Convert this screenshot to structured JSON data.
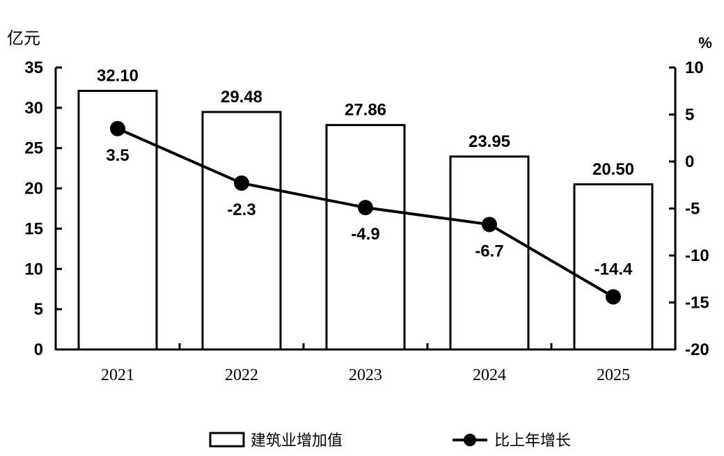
{
  "chart_data": {
    "type": "bar",
    "categories": [
      "2021",
      "2022",
      "2023",
      "2024",
      "2025"
    ],
    "series": [
      {
        "name": "建筑业增加值",
        "type": "bar",
        "axis": "left",
        "values": [
          32.1,
          29.48,
          27.86,
          23.95,
          20.5
        ],
        "labels": [
          "32.10",
          "29.48",
          "27.86",
          "23.95",
          "20.50"
        ]
      },
      {
        "name": "比上年增长",
        "type": "line",
        "axis": "right",
        "values": [
          3.5,
          -2.3,
          -4.9,
          -6.7,
          -14.4
        ],
        "labels": [
          "3.5",
          "-2.3",
          "-4.9",
          "-6.7",
          "-14.4"
        ]
      }
    ],
    "y_left": {
      "unit": "亿元",
      "ylim": [
        0,
        35
      ],
      "ticks": [
        "0",
        "5",
        "10",
        "15",
        "20",
        "25",
        "30",
        "35"
      ]
    },
    "y_right": {
      "unit": "%",
      "ylim": [
        -20,
        10
      ],
      "ticks": [
        "-20",
        "-15",
        "-10",
        "-5",
        "0",
        "5",
        "10"
      ]
    },
    "grid": false,
    "legend_position": "bottom",
    "colors": {
      "ink": "#000000",
      "bar_fill": "#ffffff"
    }
  }
}
